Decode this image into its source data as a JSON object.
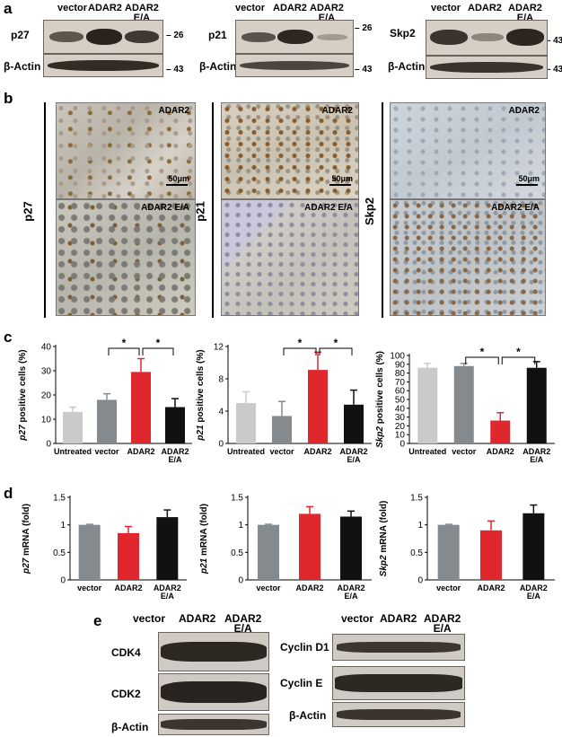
{
  "panel_labels": {
    "a": "a",
    "b": "b",
    "c": "c",
    "d": "d",
    "e": "e"
  },
  "lanes": {
    "vector": "vector",
    "adar2": "ADAR2",
    "adar2ea_line1": "ADAR2",
    "adar2ea_line2": "E/A"
  },
  "blots_a": [
    {
      "target": "p27",
      "target_mw": "26",
      "actin": "β-Actin",
      "actin_mw": "43"
    },
    {
      "target": "p21",
      "target_mw": "26",
      "actin": "β-Actin",
      "actin_mw": "43"
    },
    {
      "target": "Skp2",
      "target_mw": "43",
      "actin": "β-Actin",
      "actin_mw": "43"
    }
  ],
  "ihc": [
    {
      "marker": "p27",
      "top_label": "ADAR2",
      "bottom_label": "ADAR2 E/A",
      "scale": "50μm"
    },
    {
      "marker": "p21",
      "top_label": "ADAR2",
      "bottom_label": "ADAR2 E/A",
      "scale": "50μm"
    },
    {
      "marker": "Skp2",
      "top_label": "ADAR2",
      "bottom_label": "ADAR2 E/A",
      "scale": "50μm"
    }
  ],
  "blots_e_left": {
    "rows": [
      "CDK4",
      "CDK2",
      "β-Actin"
    ]
  },
  "blots_e_right": {
    "rows": [
      "Cyclin D1",
      "Cyclin E",
      "β-Actin"
    ]
  },
  "colors": {
    "untreated": "#c8cacc",
    "vector": "#858a8e",
    "adar2": "#e0272d",
    "adar2ea": "#111111"
  },
  "chart_data": [
    {
      "type": "bar",
      "panel": "c",
      "ylabel": "p27 positive cells (%)",
      "categories": [
        "Untreated",
        "vector",
        "ADAR2",
        "ADAR2 E/A"
      ],
      "values": [
        13,
        18,
        29.5,
        15
      ],
      "errors": [
        2,
        2.5,
        5.5,
        3.5
      ],
      "ylim": [
        0,
        40
      ],
      "ticks": [
        0,
        10,
        20,
        30,
        40
      ],
      "significance": [
        [
          "vector",
          "ADAR2",
          "*"
        ],
        [
          "ADAR2",
          "ADAR2 E/A",
          "*"
        ]
      ]
    },
    {
      "type": "bar",
      "panel": "c",
      "ylabel": "p21 positive cells (%)",
      "categories": [
        "Untreated",
        "vector",
        "ADAR2",
        "ADAR2 E/A"
      ],
      "values": [
        5,
        3.4,
        9.1,
        4.8
      ],
      "errors": [
        1.4,
        1.8,
        2.2,
        1.8
      ],
      "ylim": [
        0,
        12
      ],
      "ticks": [
        0,
        4,
        8,
        12
      ],
      "significance": [
        [
          "vector",
          "ADAR2",
          "*"
        ],
        [
          "ADAR2",
          "ADAR2 E/A",
          "*"
        ]
      ]
    },
    {
      "type": "bar",
      "panel": "c",
      "ylabel": "Skp2 positive cells (%)",
      "categories": [
        "Untreated",
        "vector",
        "ADAR2",
        "ADAR2 E/A"
      ],
      "values": [
        86,
        88,
        26,
        86
      ],
      "errors": [
        5,
        3,
        9,
        7
      ],
      "ylim": [
        0,
        100
      ],
      "ticks": [
        0,
        10,
        20,
        30,
        40,
        50,
        60,
        70,
        80,
        90,
        100
      ],
      "significance": [
        [
          "vector",
          "ADAR2",
          "*"
        ],
        [
          "ADAR2",
          "ADAR2 E/A",
          "*"
        ]
      ]
    },
    {
      "type": "bar",
      "panel": "d",
      "ylabel": "p27 mRNA (fold)",
      "categories": [
        "vector",
        "ADAR2",
        "ADAR2 E/A"
      ],
      "values": [
        1,
        0.85,
        1.14
      ],
      "errors": [
        0.01,
        0.12,
        0.13
      ],
      "ylim": [
        0,
        1.5
      ],
      "ticks": [
        0,
        0.5,
        1,
        1.5
      ]
    },
    {
      "type": "bar",
      "panel": "d",
      "ylabel": "p21 mRNA (fold)",
      "categories": [
        "vector",
        "ADAR2",
        "ADAR2 E/A"
      ],
      "values": [
        1,
        1.2,
        1.15
      ],
      "errors": [
        0.01,
        0.13,
        0.1
      ],
      "ylim": [
        0,
        1.5
      ],
      "ticks": [
        0,
        0.5,
        1,
        1.5
      ]
    },
    {
      "type": "bar",
      "panel": "d",
      "ylabel": "Skp2 mRNA (fold)",
      "categories": [
        "vector",
        "ADAR2",
        "ADAR2 E/A"
      ],
      "values": [
        1,
        0.9,
        1.21
      ],
      "errors": [
        0.01,
        0.17,
        0.15
      ],
      "ylim": [
        0,
        1.5
      ],
      "ticks": [
        0,
        0.5,
        1,
        1.5
      ]
    }
  ]
}
